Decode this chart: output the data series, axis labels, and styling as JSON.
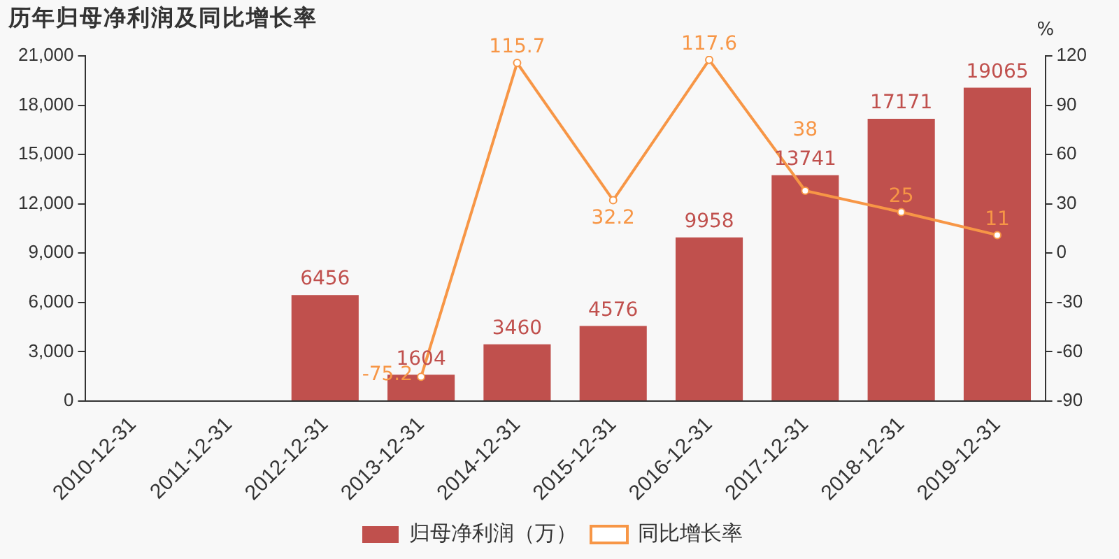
{
  "chart_data": {
    "type": "bar",
    "title": "历年归母净利润及同比增长率",
    "categories": [
      "2010-12-31",
      "2011-12-31",
      "2012-12-31",
      "2013-12-31",
      "2014-12-31",
      "2015-12-31",
      "2016-12-31",
      "2017-12-31",
      "2018-12-31",
      "2019-12-31"
    ],
    "series": [
      {
        "name": "归母净利润（万）",
        "color": "#c0504d",
        "values": [
          null,
          null,
          6456,
          1604,
          3460,
          4576,
          9958,
          13741,
          17171,
          19065
        ]
      },
      {
        "name": "同比增长率",
        "type": "line",
        "axis": "y2",
        "color": "#f79646",
        "values": [
          null,
          null,
          null,
          -75.2,
          115.7,
          32.2,
          117.6,
          38,
          25,
          11
        ]
      }
    ],
    "ylim": [
      0,
      21000
    ],
    "yticks": [
      {
        "value": 0,
        "label": "0"
      },
      {
        "value": 3000,
        "label": "3,000"
      },
      {
        "value": 6000,
        "label": "6,000"
      },
      {
        "value": 9000,
        "label": "9,000"
      },
      {
        "value": 12000,
        "label": "12,000"
      },
      {
        "value": 15000,
        "label": "15,000"
      },
      {
        "value": 18000,
        "label": "18,000"
      },
      {
        "value": 21000,
        "label": "21,000"
      }
    ],
    "y2label": "%",
    "y2lim": [
      -90,
      120
    ],
    "y2ticks": [
      -90,
      -60,
      -30,
      0,
      30,
      60,
      90,
      120
    ],
    "data_labels": true,
    "legend": "bottom",
    "grid": false,
    "marker": "circle"
  }
}
